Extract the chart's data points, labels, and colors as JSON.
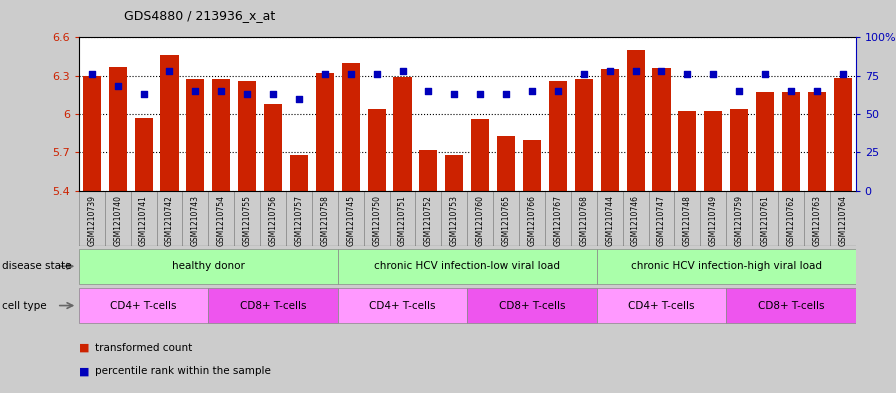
{
  "title": "GDS4880 / 213936_x_at",
  "samples": [
    "GSM1210739",
    "GSM1210740",
    "GSM1210741",
    "GSM1210742",
    "GSM1210743",
    "GSM1210754",
    "GSM1210755",
    "GSM1210756",
    "GSM1210757",
    "GSM1210758",
    "GSM1210745",
    "GSM1210750",
    "GSM1210751",
    "GSM1210752",
    "GSM1210753",
    "GSM1210760",
    "GSM1210765",
    "GSM1210766",
    "GSM1210767",
    "GSM1210768",
    "GSM1210744",
    "GSM1210746",
    "GSM1210747",
    "GSM1210748",
    "GSM1210749",
    "GSM1210759",
    "GSM1210761",
    "GSM1210762",
    "GSM1210763",
    "GSM1210764"
  ],
  "bar_values": [
    6.3,
    6.37,
    5.97,
    6.46,
    6.27,
    6.27,
    6.26,
    6.08,
    5.68,
    6.32,
    6.4,
    6.04,
    6.29,
    5.72,
    5.68,
    5.96,
    5.83,
    5.8,
    6.26,
    6.27,
    6.35,
    6.5,
    6.36,
    6.02,
    6.02,
    6.04,
    6.17,
    6.17,
    6.17,
    6.28
  ],
  "dot_values_pct": [
    76,
    68,
    63,
    78,
    65,
    65,
    63,
    63,
    60,
    76,
    76,
    76,
    78,
    65,
    63,
    63,
    63,
    65,
    65,
    76,
    78,
    78,
    78,
    76,
    76,
    65,
    76,
    65,
    65,
    76
  ],
  "ylim": [
    5.4,
    6.6
  ],
  "yticks_left": [
    5.4,
    5.7,
    6.0,
    6.3,
    6.6
  ],
  "ytick_labels_left": [
    "5.4",
    "5.7",
    "6",
    "6.3",
    "6.6"
  ],
  "yticks_right_pct": [
    0,
    25,
    50,
    75,
    100
  ],
  "bar_color": "#CC2200",
  "dot_color": "#0000BB",
  "bg_color": "#CCCCCC",
  "plot_bg": "#FFFFFF",
  "xtick_bg": "#CCCCCC",
  "disease_color": "#AAFFAA",
  "cell_color_1": "#FF99FF",
  "cell_color_2": "#EE55EE",
  "disease_groups": [
    {
      "label": "healthy donor",
      "start": 0,
      "end": 9
    },
    {
      "label": "chronic HCV infection-low viral load",
      "start": 10,
      "end": 19
    },
    {
      "label": "chronic HCV infection-high viral load",
      "start": 20,
      "end": 29
    }
  ],
  "cell_groups": [
    {
      "label": "CD4+ T-cells",
      "start": 0,
      "end": 4
    },
    {
      "label": "CD8+ T-cells",
      "start": 5,
      "end": 9
    },
    {
      "label": "CD4+ T-cells",
      "start": 10,
      "end": 14
    },
    {
      "label": "CD8+ T-cells",
      "start": 15,
      "end": 19
    },
    {
      "label": "CD4+ T-cells",
      "start": 20,
      "end": 24
    },
    {
      "label": "CD8+ T-cells",
      "start": 25,
      "end": 29
    }
  ],
  "disease_state_label": "disease state",
  "cell_type_label": "cell type",
  "legend_bar_label": "transformed count",
  "legend_dot_label": "percentile rank within the sample"
}
